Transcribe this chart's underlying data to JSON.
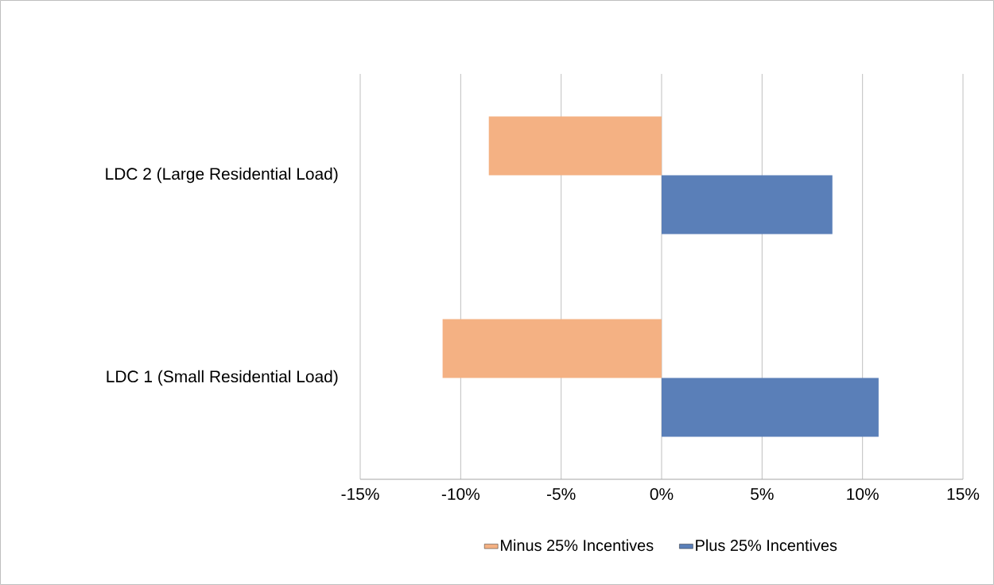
{
  "chart_data": {
    "type": "bar",
    "orientation": "horizontal",
    "categories": [
      "LDC 2 (Large Residential Load)",
      "LDC 1 (Small Residential Load)"
    ],
    "series": [
      {
        "name": "Minus 25% Incentives",
        "color": "#f4b183",
        "values": [
          -8.6,
          -10.9
        ]
      },
      {
        "name": "Plus 25% Incentives",
        "color": "#5a7fb8",
        "values": [
          8.5,
          10.8
        ]
      }
    ],
    "xlim": [
      -15,
      15
    ],
    "xticks": [
      {
        "value": -15,
        "label": "-15%"
      },
      {
        "value": -10,
        "label": "-10%"
      },
      {
        "value": -5,
        "label": "-5%"
      },
      {
        "value": 0,
        "label": "0%"
      },
      {
        "value": 5,
        "label": "5%"
      },
      {
        "value": 10,
        "label": "10%"
      },
      {
        "value": 15,
        "label": "15%"
      }
    ],
    "grid": "x",
    "legend": "bottom"
  }
}
